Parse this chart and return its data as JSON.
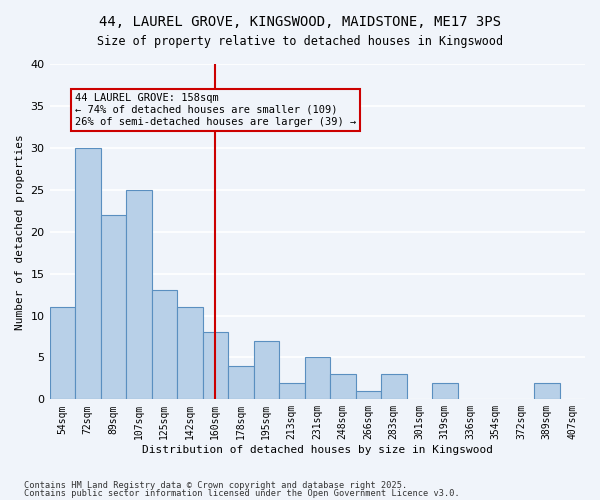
{
  "title_line1": "44, LAUREL GROVE, KINGSWOOD, MAIDSTONE, ME17 3PS",
  "title_line2": "Size of property relative to detached houses in Kingswood",
  "xlabel": "Distribution of detached houses by size in Kingswood",
  "ylabel": "Number of detached properties",
  "footnote_line1": "Contains HM Land Registry data © Crown copyright and database right 2025.",
  "footnote_line2": "Contains public sector information licensed under the Open Government Licence v3.0.",
  "categories": [
    "54sqm",
    "72sqm",
    "89sqm",
    "107sqm",
    "125sqm",
    "142sqm",
    "160sqm",
    "178sqm",
    "195sqm",
    "213sqm",
    "231sqm",
    "248sqm",
    "266sqm",
    "283sqm",
    "301sqm",
    "319sqm",
    "336sqm",
    "354sqm",
    "372sqm",
    "389sqm",
    "407sqm"
  ],
  "values": [
    11,
    30,
    22,
    25,
    13,
    11,
    8,
    4,
    7,
    2,
    5,
    3,
    1,
    3,
    0,
    2,
    0,
    0,
    0,
    2,
    0
  ],
  "bar_color": "#b8d0e8",
  "bar_edge_color": "#5a8fc0",
  "highlight_bar_index": 6,
  "highlight_line_color": "#cc0000",
  "annotation_text_line1": "44 LAUREL GROVE: 158sqm",
  "annotation_text_line2": "← 74% of detached houses are smaller (109)",
  "annotation_text_line3": "26% of semi-detached houses are larger (39) →",
  "annotation_box_color": "#cc0000",
  "background_color": "#f0f4fa",
  "grid_color": "#ffffff",
  "ylim": [
    0,
    40
  ],
  "yticks": [
    0,
    5,
    10,
    15,
    20,
    25,
    30,
    35,
    40
  ]
}
